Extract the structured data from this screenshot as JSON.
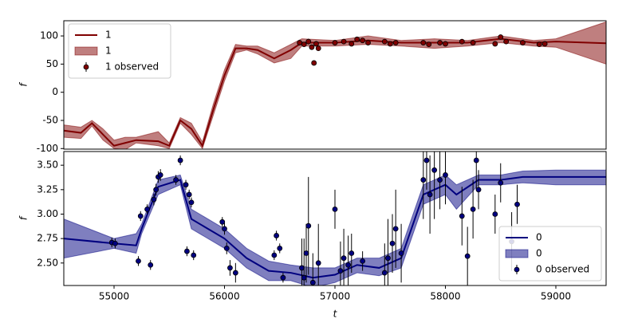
{
  "chart_data": [
    {
      "type": "line",
      "y_label": "f",
      "legend": "upper left",
      "xlim": [
        54545,
        59455
      ],
      "ylim": [
        -101,
        127
      ],
      "yticks": [
        -100,
        -50,
        0,
        50,
        100
      ],
      "series": [
        {
          "name": "1",
          "style": "line",
          "color": "#800000",
          "x": [
            54545,
            54700,
            54800,
            54900,
            55000,
            55100,
            55200,
            55400,
            55500,
            55600,
            55700,
            55800,
            55900,
            56000,
            56100,
            56200,
            56300,
            56450,
            56600,
            56700,
            57000,
            57300,
            57600,
            57900,
            58200,
            58500,
            58800,
            59000,
            59455
          ],
          "values": [
            -68,
            -72,
            -55,
            -75,
            -95,
            -90,
            -85,
            -87,
            -95,
            -50,
            -65,
            -95,
            -30,
            30,
            78,
            78,
            75,
            60,
            75,
            88,
            88,
            92,
            88,
            88,
            88,
            95,
            88,
            90,
            87
          ]
        },
        {
          "name": "1",
          "style": "band",
          "color": "#800000",
          "x": [
            54545,
            54700,
            54800,
            54900,
            55000,
            55100,
            55200,
            55400,
            55500,
            55600,
            55700,
            55800,
            55900,
            56000,
            56100,
            56200,
            56300,
            56450,
            56600,
            56700,
            57000,
            57300,
            57600,
            57900,
            58200,
            58500,
            58800,
            59000,
            59455
          ],
          "lower": [
            -80,
            -82,
            -60,
            -85,
            -100,
            -102,
            -90,
            -95,
            -100,
            -55,
            -75,
            -100,
            -40,
            20,
            70,
            75,
            68,
            52,
            60,
            82,
            82,
            85,
            82,
            78,
            82,
            88,
            82,
            80,
            50
          ],
          "upper": [
            -58,
            -62,
            -50,
            -65,
            -85,
            -80,
            -80,
            -70,
            -90,
            -45,
            -55,
            -88,
            -20,
            40,
            85,
            82,
            82,
            70,
            85,
            95,
            92,
            100,
            92,
            95,
            92,
            100,
            92,
            95,
            125
          ]
        },
        {
          "name": "1 observed",
          "style": "points",
          "color": "#800000",
          "x": [
            56680,
            56720,
            56760,
            56790,
            56810,
            56830,
            56850,
            57000,
            57080,
            57150,
            57200,
            57250,
            57300,
            57450,
            57500,
            57550,
            57800,
            57850,
            57950,
            58000,
            58150,
            58250,
            58450,
            58500,
            58550,
            58700,
            58850,
            58900
          ],
          "values": [
            88,
            85,
            90,
            80,
            52,
            86,
            78,
            88,
            90,
            86,
            94,
            92,
            88,
            90,
            86,
            88,
            88,
            85,
            88,
            86,
            90,
            88,
            86,
            98,
            90,
            88,
            85,
            86
          ],
          "errors": [
            4,
            3,
            5,
            4,
            3,
            4,
            3,
            3,
            3,
            3,
            3,
            3,
            3,
            3,
            3,
            3,
            3,
            3,
            3,
            3,
            3,
            3,
            3,
            3,
            3,
            3,
            3,
            3
          ]
        }
      ]
    },
    {
      "type": "line",
      "y_label": "f",
      "x_label": "t",
      "legend": "lower right",
      "xlim": [
        54545,
        59455
      ],
      "xticks": [
        55000,
        56000,
        57000,
        58000,
        59000
      ],
      "ylim": [
        2.27,
        3.64
      ],
      "yticks": [
        {
          "value": 2.5,
          "label": "2.50"
        },
        {
          "value": 2.75,
          "label": "2.75"
        },
        {
          "value": 3,
          "label": "3.00"
        },
        {
          "value": 3.25,
          "label": "3.25"
        },
        {
          "value": 3.5,
          "label": "3.50"
        }
      ],
      "series": [
        {
          "name": "0",
          "style": "line",
          "color": "#00007f",
          "x": [
            54545,
            55000,
            55200,
            55250,
            55400,
            55600,
            55700,
            56000,
            56200,
            56400,
            56600,
            56800,
            57000,
            57200,
            57400,
            57600,
            57800,
            58000,
            58100,
            58300,
            58500,
            58700,
            59000,
            59455
          ],
          "values": [
            2.75,
            2.7,
            2.68,
            2.85,
            3.28,
            3.35,
            2.95,
            2.75,
            2.55,
            2.42,
            2.4,
            2.35,
            2.38,
            2.48,
            2.45,
            2.55,
            3.2,
            3.3,
            3.2,
            3.35,
            3.35,
            3.38,
            3.38,
            3.38
          ]
        },
        {
          "name": "0",
          "style": "band",
          "color": "#00007f",
          "x": [
            54545,
            55000,
            55200,
            55250,
            55400,
            55600,
            55700,
            56000,
            56200,
            56400,
            56600,
            56800,
            57000,
            57200,
            57400,
            57600,
            57800,
            58000,
            58100,
            58300,
            58500,
            58700,
            59000,
            59455
          ],
          "lower": [
            2.55,
            2.65,
            2.6,
            2.8,
            3.2,
            3.3,
            2.85,
            2.65,
            2.45,
            2.32,
            2.32,
            2.25,
            2.3,
            2.4,
            2.37,
            2.45,
            3.1,
            3.2,
            3.05,
            3.3,
            3.3,
            3.32,
            3.3,
            3.3
          ],
          "upper": [
            2.95,
            2.75,
            2.8,
            2.9,
            3.35,
            3.4,
            3.05,
            2.85,
            2.65,
            2.52,
            2.48,
            2.45,
            2.45,
            2.55,
            2.55,
            2.65,
            3.3,
            3.4,
            3.3,
            3.4,
            3.4,
            3.44,
            3.45,
            3.45
          ]
        },
        {
          "name": "0 observed",
          "style": "points",
          "color": "#00007f",
          "x": [
            54980,
            55010,
            55220,
            55240,
            55300,
            55330,
            55360,
            55380,
            55400,
            55420,
            55560,
            55600,
            55650,
            55660,
            55680,
            55700,
            55720,
            55980,
            56000,
            56020,
            56050,
            56100,
            56450,
            56470,
            56500,
            56530,
            56700,
            56720,
            56740,
            56760,
            56800,
            56850,
            57000,
            57050,
            57080,
            57120,
            57150,
            57250,
            57450,
            57480,
            57520,
            57550,
            57600,
            57800,
            57830,
            57860,
            57900,
            57950,
            58000,
            58150,
            58200,
            58250,
            58280,
            58300,
            58450,
            58500,
            58600,
            58650
          ],
          "values": [
            2.71,
            2.7,
            2.52,
            2.98,
            3.05,
            2.48,
            3.15,
            3.25,
            3.38,
            3.4,
            3.35,
            3.55,
            3.3,
            2.62,
            3.2,
            3.12,
            2.58,
            2.92,
            2.85,
            2.65,
            2.45,
            2.4,
            2.58,
            2.78,
            2.65,
            2.35,
            2.45,
            2.35,
            2.6,
            2.88,
            2.3,
            2.5,
            3.05,
            2.42,
            2.55,
            2.48,
            2.6,
            2.52,
            2.4,
            2.55,
            2.7,
            2.85,
            2.6,
            3.35,
            3.55,
            3.2,
            3.45,
            3.35,
            3.4,
            2.98,
            2.57,
            3.05,
            3.55,
            3.25,
            3.0,
            3.32,
            2.72,
            3.1
          ],
          "errors": [
            0.05,
            0.05,
            0.05,
            0.05,
            0.05,
            0.05,
            0.06,
            0.06,
            0.06,
            0.06,
            0.05,
            0.05,
            0.05,
            0.05,
            0.05,
            0.05,
            0.05,
            0.05,
            0.06,
            0.06,
            0.08,
            0.1,
            0.05,
            0.05,
            0.05,
            0.05,
            0.3,
            0.4,
            0.3,
            0.5,
            0.3,
            0.4,
            0.2,
            0.3,
            0.3,
            0.3,
            0.2,
            0.1,
            0.3,
            0.4,
            0.3,
            0.4,
            0.3,
            0.4,
            0.3,
            0.4,
            0.5,
            0.3,
            0.3,
            0.3,
            0.3,
            0.3,
            0.3,
            0.2,
            0.2,
            0.2,
            0.3,
            0.2
          ]
        }
      ]
    }
  ]
}
